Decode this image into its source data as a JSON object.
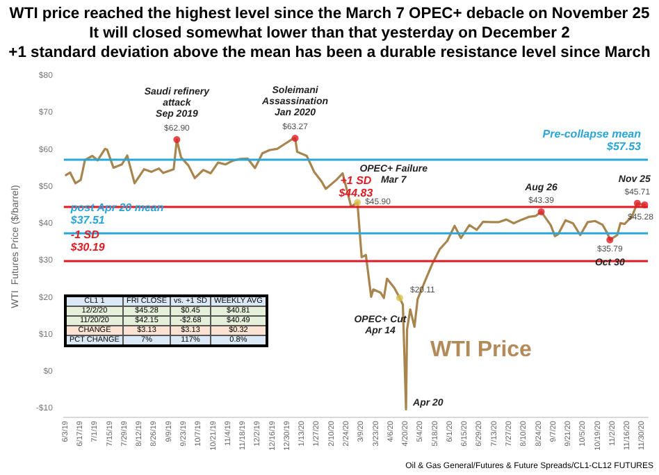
{
  "chart_data": {
    "type": "line",
    "title": "WTI price reached the highest level since the March 7 OPEC+ debacle on November 25\nIt will closed somewhat lower than that yesterday on December 2\n+1 standard deviation above the mean has been a durable resistance level since March",
    "ylabel": "WTI  Futures Price ($/barrel)",
    "xlim": [
      "2019-06-01",
      "2020-12-05"
    ],
    "xticks": [
      {
        "value": "2019-06-03",
        "label": "6/3/19"
      },
      {
        "value": "2019-06-17",
        "label": "6/17/19"
      },
      {
        "value": "2019-07-01",
        "label": "7/1/19"
      },
      {
        "value": "2019-07-15",
        "label": "7/15/19"
      },
      {
        "value": "2019-07-29",
        "label": "7/29/19"
      },
      {
        "value": "2019-08-12",
        "label": "8/12/19"
      },
      {
        "value": "2019-08-26",
        "label": "8/26/19"
      },
      {
        "value": "2019-09-09",
        "label": "9/9/19"
      },
      {
        "value": "2019-09-23",
        "label": "9/23/19"
      },
      {
        "value": "2019-10-07",
        "label": "10/7/19"
      },
      {
        "value": "2019-10-21",
        "label": "10/21/19"
      },
      {
        "value": "2019-11-04",
        "label": "11/4/19"
      },
      {
        "value": "2019-11-18",
        "label": "11/18/19"
      },
      {
        "value": "2019-12-02",
        "label": "12/2/19"
      },
      {
        "value": "2019-12-16",
        "label": "12/16/19"
      },
      {
        "value": "2019-12-30",
        "label": "12/30/19"
      },
      {
        "value": "2020-01-13",
        "label": "1/13/20"
      },
      {
        "value": "2020-01-27",
        "label": "1/27/20"
      },
      {
        "value": "2020-02-10",
        "label": "2/10/20"
      },
      {
        "value": "2020-02-24",
        "label": "2/24/20"
      },
      {
        "value": "2020-03-09",
        "label": "3/9/20"
      },
      {
        "value": "2020-03-23",
        "label": "3/23/20"
      },
      {
        "value": "2020-04-06",
        "label": "4/6/20"
      },
      {
        "value": "2020-04-20",
        "label": "4/20/20"
      },
      {
        "value": "2020-05-04",
        "label": "5/4/20"
      },
      {
        "value": "2020-05-18",
        "label": "5/18/20"
      },
      {
        "value": "2020-06-01",
        "label": "6/1/20"
      },
      {
        "value": "2020-06-15",
        "label": "6/15/20"
      },
      {
        "value": "2020-06-29",
        "label": "6/29/20"
      },
      {
        "value": "2020-07-13",
        "label": "7/13/20"
      },
      {
        "value": "2020-07-27",
        "label": "7/27/20"
      },
      {
        "value": "2020-08-10",
        "label": "8/10/20"
      },
      {
        "value": "2020-08-24",
        "label": "8/24/20"
      },
      {
        "value": "2020-09-07",
        "label": "9/7/20"
      },
      {
        "value": "2020-09-21",
        "label": "9/21/20"
      },
      {
        "value": "2020-10-05",
        "label": "10/5/20"
      },
      {
        "value": "2020-10-19",
        "label": "10/19/20"
      },
      {
        "value": "2020-11-02",
        "label": "11/2/20"
      },
      {
        "value": "2020-11-16",
        "label": "11/16/20"
      },
      {
        "value": "2020-11-30",
        "label": "11/30/20"
      }
    ],
    "ylim": [
      -12,
      80
    ],
    "yticks": [
      {
        "value": -10,
        "label": "-$10"
      },
      {
        "value": 0,
        "label": "$0"
      },
      {
        "value": 10,
        "label": "$10"
      },
      {
        "value": 20,
        "label": "$20"
      },
      {
        "value": 30,
        "label": "$30"
      },
      {
        "value": 40,
        "label": "$40"
      },
      {
        "value": 50,
        "label": "$50"
      },
      {
        "value": 60,
        "label": "$60"
      },
      {
        "value": 70,
        "label": "$70"
      },
      {
        "value": 80,
        "label": "$80"
      }
    ],
    "grid": false,
    "line_style": "solid",
    "series": [
      {
        "color": "#a8844e",
        "x": [
          "2019-06-03",
          "2019-06-07",
          "2019-06-12",
          "2019-06-17",
          "2019-06-21",
          "2019-06-28",
          "2019-07-03",
          "2019-07-10",
          "2019-07-12",
          "2019-07-18",
          "2019-07-26",
          "2019-07-31",
          "2019-08-07",
          "2019-08-16",
          "2019-08-23",
          "2019-08-30",
          "2019-09-03",
          "2019-09-13",
          "2019-09-16",
          "2019-09-20",
          "2019-09-27",
          "2019-10-03",
          "2019-10-11",
          "2019-10-18",
          "2019-10-25",
          "2019-11-01",
          "2019-11-08",
          "2019-11-15",
          "2019-11-22",
          "2019-11-29",
          "2019-12-06",
          "2019-12-13",
          "2019-12-20",
          "2019-12-27",
          "2020-01-03",
          "2020-01-06",
          "2020-01-08",
          "2020-01-17",
          "2020-01-24",
          "2020-01-31",
          "2020-02-04",
          "2020-02-14",
          "2020-02-20",
          "2020-02-28",
          "2020-03-05",
          "2020-03-09",
          "2020-03-13",
          "2020-03-18",
          "2020-03-20",
          "2020-03-27",
          "2020-03-30",
          "2020-04-02",
          "2020-04-09",
          "2020-04-14",
          "2020-04-17",
          "2020-04-20",
          "2020-04-21",
          "2020-04-24",
          "2020-04-28",
          "2020-05-01",
          "2020-05-08",
          "2020-05-15",
          "2020-05-22",
          "2020-05-29",
          "2020-06-05",
          "2020-06-11",
          "2020-06-19",
          "2020-06-26",
          "2020-07-02",
          "2020-07-10",
          "2020-07-17",
          "2020-07-24",
          "2020-07-31",
          "2020-08-07",
          "2020-08-14",
          "2020-08-21",
          "2020-08-26",
          "2020-09-04",
          "2020-09-08",
          "2020-09-11",
          "2020-09-18",
          "2020-09-25",
          "2020-10-02",
          "2020-10-09",
          "2020-10-16",
          "2020-10-23",
          "2020-10-28",
          "2020-10-30",
          "2020-11-06",
          "2020-11-09",
          "2020-11-13",
          "2020-11-20",
          "2020-11-25",
          "2020-11-27",
          "2020-12-02"
        ],
        "values": [
          53.3,
          54,
          51.1,
          52,
          57.4,
          58.5,
          57.3,
          60.4,
          60.2,
          55.3,
          56.2,
          58.6,
          51.1,
          54.9,
          54.2,
          55.1,
          53.9,
          54.9,
          62.9,
          58.1,
          55.9,
          52.5,
          54.7,
          53.8,
          56.7,
          56.2,
          57.2,
          57.7,
          57.8,
          55.2,
          59.2,
          60.1,
          60.4,
          61.7,
          63,
          63.3,
          59.6,
          58.5,
          54.2,
          51.6,
          49.6,
          52,
          53.8,
          44.8,
          45.9,
          31.1,
          31.7,
          20.4,
          22.4,
          21.5,
          20.1,
          25.3,
          22.8,
          20.1,
          18.3,
          -10,
          11.6,
          17,
          12.3,
          19.8,
          24.7,
          29.4,
          33.3,
          35.5,
          39.6,
          36.3,
          39.8,
          38.5,
          40.7,
          40.6,
          40.6,
          41.3,
          40.3,
          41.2,
          42,
          42.3,
          43.4,
          39.8,
          36.8,
          37.3,
          41.1,
          40.3,
          37.1,
          40.6,
          40.9,
          39.9,
          37.4,
          35.8,
          37.1,
          40.3,
          40.1,
          42.2,
          45.7,
          45.5,
          45.3
        ]
      },
      {
        "type": "scatter",
        "color": "#e01b24",
        "x": [
          "2019-09-16",
          "2020-01-06",
          "2020-08-26",
          "2020-10-30",
          "2020-11-25",
          "2020-12-02"
        ],
        "values": [
          62.9,
          63.27,
          43.39,
          35.79,
          45.71,
          45.28
        ],
        "value_labels": [
          "$62.90",
          "$63.27",
          "$43.39",
          "$35.79",
          "$45.71",
          "$45.28"
        ]
      },
      {
        "type": "scatter",
        "color": "#d9c24a",
        "x": [
          "2020-03-05",
          "2020-04-14"
        ],
        "values": [
          45.9,
          20.11
        ],
        "value_labels": [
          "$45.90",
          "$20.11"
        ]
      }
    ],
    "ref_lines": [
      {
        "axis": "y",
        "value": 57.53,
        "label": "Pre-collapse mean\n$57.53",
        "color": "#2aa5d8"
      },
      {
        "axis": "y",
        "value": 44.83,
        "label": "+1 SD\n$44.83",
        "color": "#e01b24"
      },
      {
        "axis": "y",
        "value": 37.51,
        "label": "post Apr 20 mean\n$37.51",
        "color": "#2aa5d8"
      },
      {
        "axis": "y",
        "value": 30.19,
        "label": "-1 SD\n$30.19",
        "color": "#e01b24"
      }
    ],
    "annotations": [
      {
        "text": "Saudi refinery\nattack\nSep 2019",
        "x": "2019-09-16",
        "y": 62.9
      },
      {
        "text": "Soleimani\nAssassination\nJan 2020",
        "x": "2020-01-06",
        "y": 63.27
      },
      {
        "text": "OPEC+ Failure\nMar 7",
        "x": "2020-03-05",
        "y": 45.9
      },
      {
        "text": "OPEC+ Cut\nApr 14",
        "x": "2020-04-14",
        "y": 20.11
      },
      {
        "text": "Apr 20",
        "x": "2020-04-20",
        "y": -10
      },
      {
        "text": "Aug 26",
        "x": "2020-08-26",
        "y": 43.39
      },
      {
        "text": "Oct 30",
        "x": "2020-10-30",
        "y": 35.79
      },
      {
        "text": "Nov 25",
        "x": "2020-11-25",
        "y": 45.71
      },
      "WTI Price",
      "CL1 1\tFRI CLOSE\tvs. +1 SD\tWEEKLY AVG",
      "12/2/20\t$45.28\t$0.45\t$40.81",
      "11/20/20\t$42.15\t-$2.68\t$40.49",
      "CHANGE\t$3.13\t$3.13\t$0.32",
      "PCT CHANGE\t7%\t117%\t0.8%",
      "Oil & Gas General/Futures & Future Spreads/CL1-CL12 FUTURES"
    ]
  }
}
